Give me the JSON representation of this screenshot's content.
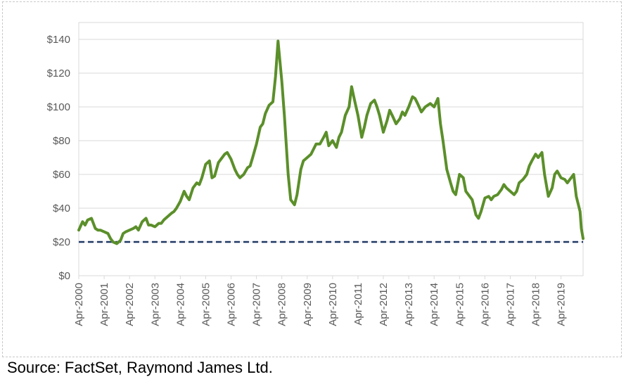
{
  "chart_data": {
    "type": "line",
    "title": "",
    "xlabel": "",
    "ylabel": "",
    "ylim": [
      0,
      150
    ],
    "y_ticks": [
      "$0",
      "$20",
      "$40",
      "$60",
      "$80",
      "$100",
      "$120",
      "$140"
    ],
    "y_tick_values": [
      0,
      20,
      40,
      60,
      80,
      100,
      120,
      140
    ],
    "x_ticks": [
      "Apr-2000",
      "Apr-2001",
      "Apr-2002",
      "Apr-2003",
      "Apr-2004",
      "Apr-2005",
      "Apr-2006",
      "Apr-2007",
      "Apr-2008",
      "Apr-2009",
      "Apr-2010",
      "Apr-2011",
      "Apr-2012",
      "Apr-2013",
      "Apr-2014",
      "Apr-2015",
      "Apr-2016",
      "Apr-2017",
      "Apr-2018",
      "Apr-2019"
    ],
    "grid": "horizontal",
    "legend": "none",
    "series": [
      {
        "color": "#5b8f2a",
        "x": [
          2000.25,
          2000.4,
          2000.5,
          2000.6,
          2000.75,
          2000.9,
          2001.0,
          2001.1,
          2001.25,
          2001.4,
          2001.5,
          2001.6,
          2001.75,
          2001.9,
          2002.0,
          2002.1,
          2002.25,
          2002.4,
          2002.5,
          2002.6,
          2002.75,
          2002.9,
          2003.0,
          2003.1,
          2003.25,
          2003.4,
          2003.5,
          2003.6,
          2003.75,
          2003.9,
          2004.0,
          2004.1,
          2004.25,
          2004.4,
          2004.5,
          2004.6,
          2004.75,
          2004.9,
          2005.0,
          2005.1,
          2005.25,
          2005.4,
          2005.5,
          2005.6,
          2005.75,
          2005.9,
          2006.0,
          2006.1,
          2006.25,
          2006.4,
          2006.5,
          2006.6,
          2006.75,
          2006.9,
          2007.0,
          2007.1,
          2007.25,
          2007.4,
          2007.5,
          2007.6,
          2007.75,
          2007.9,
          2008.0,
          2008.1,
          2008.25,
          2008.35,
          2008.5,
          2008.6,
          2008.75,
          2008.85,
          2009.0,
          2009.1,
          2009.25,
          2009.4,
          2009.5,
          2009.6,
          2009.75,
          2009.9,
          2010.0,
          2010.1,
          2010.25,
          2010.4,
          2010.5,
          2010.6,
          2010.75,
          2010.9,
          2011.0,
          2011.1,
          2011.25,
          2011.4,
          2011.5,
          2011.6,
          2011.75,
          2011.9,
          2012.0,
          2012.1,
          2012.25,
          2012.4,
          2012.5,
          2012.6,
          2012.75,
          2012.9,
          2013.0,
          2013.1,
          2013.25,
          2013.4,
          2013.5,
          2013.6,
          2013.75,
          2013.9,
          2014.0,
          2014.1,
          2014.25,
          2014.4,
          2014.5,
          2014.6,
          2014.75,
          2014.9,
          2015.0,
          2015.1,
          2015.25,
          2015.4,
          2015.5,
          2015.6,
          2015.75,
          2015.9,
          2016.0,
          2016.1,
          2016.25,
          2016.4,
          2016.5,
          2016.6,
          2016.75,
          2016.9,
          2017.0,
          2017.1,
          2017.25,
          2017.4,
          2017.5,
          2017.6,
          2017.75,
          2017.9,
          2018.0,
          2018.1,
          2018.25,
          2018.35,
          2018.5,
          2018.6,
          2018.75,
          2018.9,
          2019.0,
          2019.1,
          2019.25,
          2019.4,
          2019.5,
          2019.6,
          2019.75,
          2019.85,
          2020.0,
          2020.05,
          2020.12
        ],
        "y": [
          27,
          32,
          30,
          33,
          34,
          28,
          27,
          27,
          26,
          25,
          22,
          20,
          19,
          21,
          25,
          26,
          27,
          28,
          29,
          27,
          32,
          34,
          30,
          30,
          29,
          31,
          31,
          33,
          35,
          37,
          38,
          40,
          44,
          50,
          47,
          45,
          52,
          55,
          54,
          58,
          66,
          68,
          58,
          59,
          67,
          70,
          72,
          73,
          69,
          63,
          60,
          58,
          60,
          64,
          65,
          70,
          78,
          88,
          90,
          96,
          101,
          103,
          118,
          139,
          115,
          95,
          60,
          45,
          42,
          48,
          63,
          68,
          70,
          72,
          75,
          78,
          78,
          82,
          85,
          77,
          80,
          76,
          82,
          85,
          95,
          100,
          112,
          105,
          95,
          82,
          88,
          95,
          102,
          104,
          100,
          95,
          85,
          92,
          98,
          95,
          90,
          93,
          97,
          95,
          100,
          106,
          105,
          102,
          97,
          100,
          101,
          102,
          100,
          105,
          90,
          80,
          63,
          55,
          50,
          48,
          60,
          58,
          50,
          48,
          45,
          36,
          34,
          38,
          46,
          47,
          45,
          47,
          48,
          51,
          54,
          52,
          50,
          48,
          50,
          55,
          57,
          60,
          65,
          68,
          72,
          70,
          73,
          60,
          47,
          52,
          60,
          62,
          58,
          57,
          55,
          57,
          60,
          47,
          38,
          28,
          22
        ]
      }
    ],
    "reference_line": {
      "value": 20,
      "style": "dashed",
      "color": "#1f3864"
    }
  },
  "source": {
    "text": "Source: FactSet, Raymond James Ltd."
  }
}
